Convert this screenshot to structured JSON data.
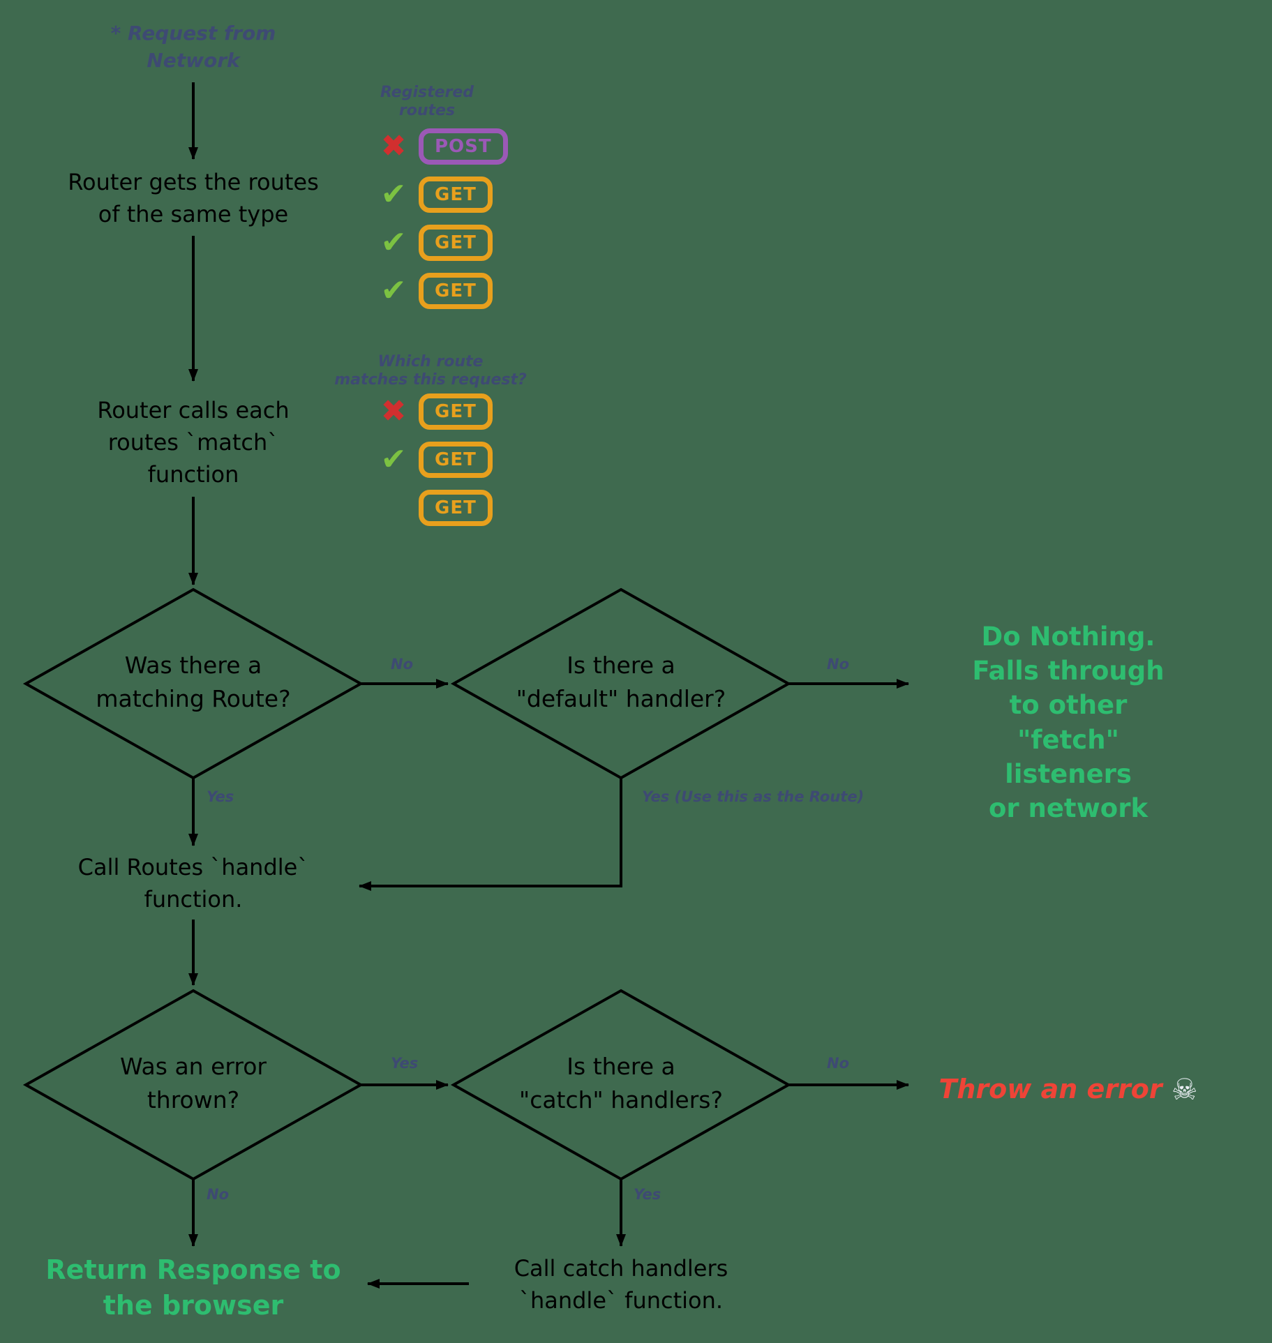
{
  "colors": {
    "background": "#3f6a4f",
    "ink": "#000000",
    "annotation": "#3e4a73",
    "get_badge": "#e8a01d",
    "post_badge": "#9b59b6",
    "check": "#7cc242",
    "cross": "#d12f2f",
    "success_text": "#2ebd70",
    "error_text": "#ef4437"
  },
  "nodes": {
    "start": "* Request from\nNetwork",
    "router_gets": "Router gets the routes\nof the same type",
    "router_calls": "Router calls each\nroutes `match`\nfunction",
    "diamond_matching_route": "Was there a\nmatching Route?",
    "diamond_default_handler": "Is there a\n\"default\" handler?",
    "do_nothing": "Do Nothing.\nFalls through to other\n\"fetch\" listeners\nor network",
    "call_handle": "Call Routes `handle`\nfunction.",
    "diamond_error_thrown": "Was an error\nthrown?",
    "diamond_catch_handler": "Is there a\n\"catch\" handlers?",
    "throw_error": "Throw an error",
    "return_response": "Return Response to\nthe browser",
    "call_catch": "Call catch handlers\n`handle` function."
  },
  "annotations": {
    "registered_routes": "Registered\nroutes",
    "which_route": "Which route\nmatches this request?",
    "no_matching": "No",
    "no_default": "No",
    "yes_matching": "Yes",
    "yes_default": "Yes (Use this as the Route)",
    "yes_error": "Yes",
    "no_catch": "No",
    "no_error": "No",
    "yes_catch": "Yes"
  },
  "registered_routes_list": [
    {
      "mark": "cross",
      "method": "POST",
      "style": "post"
    },
    {
      "mark": "check",
      "method": "GET",
      "style": "get"
    },
    {
      "mark": "check",
      "method": "GET",
      "style": "get"
    },
    {
      "mark": "check",
      "method": "GET",
      "style": "get"
    }
  ],
  "match_routes_list": [
    {
      "mark": "cross",
      "method": "GET",
      "style": "get"
    },
    {
      "mark": "check",
      "method": "GET",
      "style": "get"
    },
    {
      "mark": "none",
      "method": "GET",
      "style": "get"
    }
  ],
  "icons": {
    "check": "✔",
    "cross": "✖",
    "skull": "☠"
  }
}
